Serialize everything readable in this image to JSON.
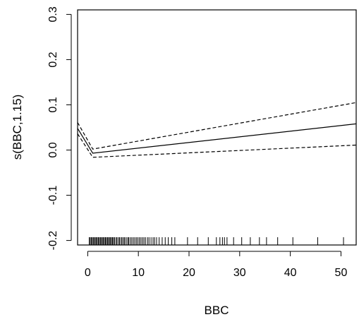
{
  "chart_data": {
    "type": "line",
    "xlabel": "BBC",
    "ylabel": "s(BBC,1.15)",
    "xlim": [
      -2,
      53
    ],
    "ylim": [
      -0.21,
      0.31
    ],
    "xticks": [
      0,
      10,
      20,
      30,
      40,
      50
    ],
    "yticks": [
      -0.2,
      -0.1,
      0.0,
      0.1,
      0.2,
      0.3
    ],
    "grid": false,
    "legend": "none",
    "series": [
      {
        "style": "solid",
        "x": [
          -2,
          1,
          53
        ],
        "y": [
          0.048,
          -0.007,
          0.058
        ]
      },
      {
        "style": "dashed",
        "x": [
          -2,
          1,
          53
        ],
        "y": [
          0.036,
          -0.016,
          0.011
        ]
      },
      {
        "style": "dashed",
        "x": [
          -2,
          1,
          53
        ],
        "y": [
          0.061,
          0.002,
          0.105
        ]
      }
    ],
    "rug": [
      0.3,
      0.5,
      0.7,
      0.9,
      1.1,
      1.3,
      1.5,
      1.7,
      1.9,
      2.1,
      2.3,
      2.5,
      2.7,
      2.9,
      3.1,
      3.3,
      3.5,
      3.7,
      3.9,
      4.1,
      4.3,
      4.5,
      4.7,
      4.9,
      5.1,
      5.3,
      5.6,
      5.8,
      6.1,
      6.3,
      6.6,
      6.8,
      7.1,
      7.3,
      7.6,
      7.9,
      8.1,
      8.4,
      8.7,
      9.0,
      9.3,
      9.6,
      9.9,
      10.2,
      10.5,
      10.8,
      11.1,
      11.4,
      11.8,
      12.1,
      12.5,
      12.9,
      13.2,
      13.6,
      14.1,
      14.7,
      15.3,
      15.9,
      16.6,
      17.2,
      19.7,
      21.7,
      23.8,
      25.4,
      26.1,
      26.6,
      27.0,
      27.5,
      28.8,
      30.4,
      32.1,
      33.9,
      35.3,
      37.5,
      40.5,
      45.4,
      50.5
    ]
  }
}
